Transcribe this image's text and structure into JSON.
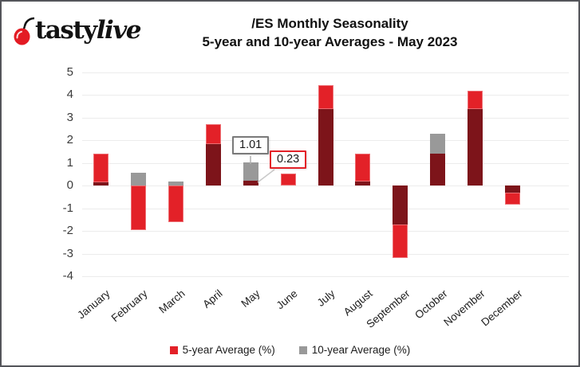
{
  "logo": {
    "brand_first": "tasty",
    "brand_second": "live",
    "cherry_color": "#e31b23"
  },
  "title": {
    "line1": "/ES Monthly Seasonality",
    "line2": "5-year and 10-year Averages - May 2023"
  },
  "chart_data": {
    "type": "bar",
    "title": "/ES Monthly Seasonality",
    "subtitle": "5-year and 10-year Averages - May 2023",
    "categories": [
      "January",
      "February",
      "March",
      "April",
      "May",
      "June",
      "July",
      "August",
      "September",
      "October",
      "November",
      "December"
    ],
    "series": [
      {
        "name": "5-year Average (%)",
        "color": "#e32128",
        "values": [
          1.4,
          -1.95,
          -1.6,
          2.7,
          0.23,
          0.55,
          4.45,
          1.4,
          -3.2,
          1.4,
          4.2,
          -0.85
        ]
      },
      {
        "name": "10-year Average (%)",
        "color": "#999999",
        "values": [
          0.15,
          0.58,
          0.2,
          1.85,
          1.01,
          0,
          3.4,
          0.2,
          -1.7,
          2.3,
          3.4,
          -0.3
        ]
      }
    ],
    "overlap_color": "#7d141a",
    "xlabel": "",
    "ylabel": "",
    "ylim": [
      -4,
      5
    ],
    "yticks": [
      5,
      4,
      3,
      2,
      1,
      0,
      -1,
      -2,
      -3,
      -4
    ],
    "grid": true,
    "gridline_color": "#ececec",
    "legend_position": "bottom",
    "annotations": [
      {
        "text": "1.01",
        "month": "May",
        "series": "10-year Average (%)",
        "value": 1.01,
        "border_color": "#7a7a7a"
      },
      {
        "text": "0.23",
        "month": "May",
        "series": "5-year Average (%)",
        "value": 0.23,
        "border_color": "#e32128"
      }
    ]
  },
  "legend": {
    "items": [
      {
        "label": "5-year Average (%)",
        "color": "#e32128"
      },
      {
        "label": "10-year Average (%)",
        "color": "#999999"
      }
    ]
  }
}
